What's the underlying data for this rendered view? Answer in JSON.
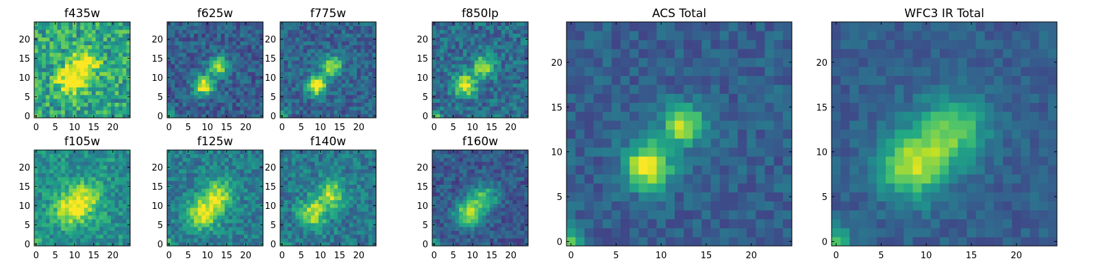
{
  "figure": {
    "type": "image-grid"
  },
  "chart_data": [
    {
      "type": "heatmap",
      "title": "f435w",
      "xlim": [
        -0.5,
        24.5
      ],
      "ylim": [
        -0.5,
        24.5
      ],
      "xticks": [
        0,
        5,
        10,
        15,
        20
      ],
      "yticks": [
        0,
        5,
        10,
        15,
        20
      ],
      "colormap": "viridis",
      "origin": "lower",
      "model": {
        "sources": [
          {
            "x": 9,
            "y": 9,
            "amp": 0.55,
            "sigma": 2.5
          },
          {
            "x": 13,
            "y": 14,
            "amp": 0.5,
            "sigma": 2.5
          }
        ],
        "background": 0.58,
        "noise": 0.22,
        "corner_glow": 0.35,
        "seed": 11
      }
    },
    {
      "type": "heatmap",
      "title": "f625w",
      "xlim": [
        -0.5,
        24.5
      ],
      "ylim": [
        -0.5,
        24.5
      ],
      "xticks": [
        0,
        5,
        10,
        15,
        20
      ],
      "yticks": [
        0,
        5,
        10,
        15,
        20
      ],
      "colormap": "viridis",
      "origin": "lower",
      "model": {
        "sources": [
          {
            "x": 9,
            "y": 8,
            "amp": 0.75,
            "sigma": 1.8
          },
          {
            "x": 13,
            "y": 13,
            "amp": 0.6,
            "sigma": 1.8
          }
        ],
        "background": 0.3,
        "noise": 0.14,
        "corner_glow": 0.4,
        "seed": 23
      }
    },
    {
      "type": "heatmap",
      "title": "f775w",
      "xlim": [
        -0.5,
        24.5
      ],
      "ylim": [
        -0.5,
        24.5
      ],
      "xticks": [
        0,
        5,
        10,
        15,
        20
      ],
      "yticks": [
        0,
        5,
        10,
        15,
        20
      ],
      "colormap": "viridis",
      "origin": "lower",
      "model": {
        "sources": [
          {
            "x": 9,
            "y": 8,
            "amp": 0.75,
            "sigma": 1.8
          },
          {
            "x": 13,
            "y": 13,
            "amp": 0.6,
            "sigma": 1.8
          }
        ],
        "background": 0.32,
        "noise": 0.14,
        "corner_glow": 0.4,
        "seed": 37
      }
    },
    {
      "type": "heatmap",
      "title": "f850lp",
      "xlim": [
        -0.5,
        24.5
      ],
      "ylim": [
        -0.5,
        24.5
      ],
      "xticks": [
        0,
        5,
        10,
        15,
        20
      ],
      "yticks": [
        0,
        5,
        10,
        15,
        20
      ],
      "colormap": "viridis",
      "origin": "lower",
      "model": {
        "sources": [
          {
            "x": 8,
            "y": 8,
            "amp": 0.65,
            "sigma": 2.0
          },
          {
            "x": 13,
            "y": 13,
            "amp": 0.55,
            "sigma": 2.0
          }
        ],
        "background": 0.35,
        "noise": 0.16,
        "corner_glow": 0.4,
        "seed": 41
      }
    },
    {
      "type": "heatmap",
      "title": "f105w",
      "xlim": [
        -0.5,
        24.5
      ],
      "ylim": [
        -0.5,
        24.5
      ],
      "xticks": [
        0,
        5,
        10,
        15,
        20
      ],
      "yticks": [
        0,
        5,
        10,
        15,
        20
      ],
      "colormap": "viridis",
      "origin": "lower",
      "model": {
        "sources": [
          {
            "x": 9,
            "y": 9,
            "amp": 0.45,
            "sigma": 3.0
          },
          {
            "x": 13,
            "y": 12,
            "amp": 0.35,
            "sigma": 3.0
          }
        ],
        "background": 0.5,
        "noise": 0.15,
        "corner_glow": 0.3,
        "seed": 53
      }
    },
    {
      "type": "heatmap",
      "title": "f125w",
      "xlim": [
        -0.5,
        24.5
      ],
      "ylim": [
        -0.5,
        24.5
      ],
      "xticks": [
        0,
        5,
        10,
        15,
        20
      ],
      "yticks": [
        0,
        5,
        10,
        15,
        20
      ],
      "colormap": "viridis",
      "origin": "lower",
      "model": {
        "sources": [
          {
            "x": 9,
            "y": 8,
            "amp": 0.55,
            "sigma": 2.8
          },
          {
            "x": 13,
            "y": 13,
            "amp": 0.45,
            "sigma": 2.8
          }
        ],
        "background": 0.42,
        "noise": 0.14,
        "corner_glow": 0.3,
        "seed": 67
      }
    },
    {
      "type": "heatmap",
      "title": "f140w",
      "xlim": [
        -0.5,
        24.5
      ],
      "ylim": [
        -0.5,
        24.5
      ],
      "xticks": [
        0,
        5,
        10,
        15,
        20
      ],
      "yticks": [
        0,
        5,
        10,
        15,
        20
      ],
      "colormap": "viridis",
      "origin": "lower",
      "model": {
        "sources": [
          {
            "x": 8,
            "y": 8,
            "amp": 0.5,
            "sigma": 2.6
          },
          {
            "x": 13,
            "y": 13,
            "amp": 0.45,
            "sigma": 2.6
          }
        ],
        "background": 0.4,
        "noise": 0.15,
        "corner_glow": 0.3,
        "seed": 79
      }
    },
    {
      "type": "heatmap",
      "title": "f160w",
      "xlim": [
        -0.5,
        24.5
      ],
      "ylim": [
        -0.5,
        24.5
      ],
      "xticks": [
        0,
        5,
        10,
        15,
        20
      ],
      "yticks": [
        0,
        5,
        10,
        15,
        20
      ],
      "colormap": "viridis",
      "origin": "lower",
      "model": {
        "sources": [
          {
            "x": 9,
            "y": 8,
            "amp": 0.6,
            "sigma": 2.4
          },
          {
            "x": 13,
            "y": 12,
            "amp": 0.45,
            "sigma": 2.4
          }
        ],
        "background": 0.28,
        "noise": 0.12,
        "corner_glow": 0.3,
        "seed": 83
      }
    },
    {
      "type": "heatmap",
      "title": "ACS Total",
      "xlim": [
        -0.5,
        24.5
      ],
      "ylim": [
        -0.5,
        24.5
      ],
      "xticks": [
        0,
        5,
        10,
        15,
        20
      ],
      "yticks": [
        0,
        5,
        10,
        15,
        20
      ],
      "colormap": "viridis",
      "origin": "lower",
      "model": {
        "sources": [
          {
            "x": 8.5,
            "y": 8.5,
            "amp": 0.72,
            "sigma": 1.8
          },
          {
            "x": 12.5,
            "y": 13,
            "amp": 0.6,
            "sigma": 1.6
          }
        ],
        "background": 0.3,
        "noise": 0.1,
        "corner_glow": 0.5,
        "seed": 97
      }
    },
    {
      "type": "heatmap",
      "title": "WFC3 IR Total",
      "xlim": [
        -0.5,
        24.5
      ],
      "ylim": [
        -0.5,
        24.5
      ],
      "xticks": [
        0,
        5,
        10,
        15,
        20
      ],
      "yticks": [
        0,
        5,
        10,
        15,
        20
      ],
      "colormap": "viridis",
      "origin": "lower",
      "model": {
        "sources": [
          {
            "x": 8.5,
            "y": 8.5,
            "amp": 0.6,
            "sigma": 2.6
          },
          {
            "x": 13,
            "y": 12.5,
            "amp": 0.45,
            "sigma": 2.6
          }
        ],
        "background": 0.3,
        "noise": 0.08,
        "corner_glow": 0.45,
        "seed": 113
      }
    }
  ]
}
